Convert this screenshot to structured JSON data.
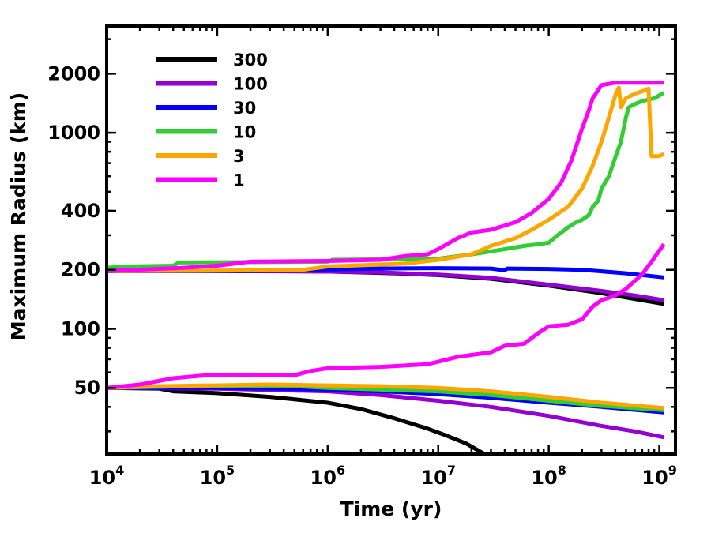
{
  "chart_data": {
    "type": "line",
    "xlabel": "Time (yr)",
    "ylabel": "Maximum Radius (km)",
    "xscale": "log",
    "yscale": "log",
    "xlim": [
      10000,
      1400000000
    ],
    "ylim": [
      23,
      3500
    ],
    "xticks": [
      {
        "value": 10000,
        "base": "10",
        "exp": "4"
      },
      {
        "value": 100000,
        "base": "10",
        "exp": "5"
      },
      {
        "value": 1000000,
        "base": "10",
        "exp": "6"
      },
      {
        "value": 10000000,
        "base": "10",
        "exp": "7"
      },
      {
        "value": 100000000,
        "base": "10",
        "exp": "8"
      },
      {
        "value": 1000000000,
        "base": "10",
        "exp": "9"
      }
    ],
    "yticks": [
      {
        "value": 50,
        "label": "50"
      },
      {
        "value": 100,
        "label": "100"
      },
      {
        "value": 200,
        "label": "200"
      },
      {
        "value": 400,
        "label": "400"
      },
      {
        "value": 1000,
        "label": "1000"
      },
      {
        "value": 2000,
        "label": "2000"
      }
    ],
    "legend_position": "top-left",
    "series": [
      {
        "name": "300",
        "color": "#000000",
        "group": "initial 200 km",
        "points": [
          [
            10000,
            197
          ],
          [
            30000,
            197
          ],
          [
            100000,
            197
          ],
          [
            300000,
            197
          ],
          [
            1000000,
            196
          ],
          [
            2000000,
            194
          ],
          [
            4000000,
            192
          ],
          [
            10000000,
            188
          ],
          [
            30000000,
            180
          ],
          [
            100000000,
            166
          ],
          [
            300000000,
            152
          ],
          [
            600000000,
            142
          ],
          [
            1100000000,
            134
          ]
        ]
      },
      {
        "name": "100",
        "color": "#9400D3",
        "group": "initial 200 km",
        "points": [
          [
            10000,
            197
          ],
          [
            100000,
            197
          ],
          [
            1000000,
            196
          ],
          [
            3000000,
            194
          ],
          [
            10000000,
            189
          ],
          [
            30000000,
            182
          ],
          [
            100000000,
            168
          ],
          [
            300000000,
            156
          ],
          [
            600000000,
            148
          ],
          [
            1100000000,
            140
          ]
        ]
      },
      {
        "name": "30",
        "color": "#0000FF",
        "group": "initial 200 km",
        "points": [
          [
            10000,
            197
          ],
          [
            100000,
            197
          ],
          [
            500000,
            198
          ],
          [
            1000000,
            201
          ],
          [
            3000000,
            203
          ],
          [
            10000000,
            204
          ],
          [
            30000000,
            203
          ],
          [
            40000000,
            199
          ],
          [
            42000000,
            203
          ],
          [
            100000000,
            202
          ],
          [
            200000000,
            200
          ],
          [
            500000000,
            192
          ],
          [
            1100000000,
            183
          ]
        ]
      },
      {
        "name": "10",
        "color": "#32CD32",
        "group": "initial 200 km",
        "points": [
          [
            10000,
            205
          ],
          [
            15000,
            208
          ],
          [
            40000,
            210
          ],
          [
            45000,
            218
          ],
          [
            1000000,
            220
          ],
          [
            1100000,
            225
          ],
          [
            10000000,
            228
          ],
          [
            20000000,
            240
          ],
          [
            40000000,
            255
          ],
          [
            60000000,
            265
          ],
          [
            80000000,
            270
          ],
          [
            100000000,
            275
          ],
          [
            120000000,
            300
          ],
          [
            150000000,
            330
          ],
          [
            170000000,
            345
          ],
          [
            200000000,
            360
          ],
          [
            230000000,
            380
          ],
          [
            250000000,
            420
          ],
          [
            280000000,
            450
          ],
          [
            300000000,
            520
          ],
          [
            350000000,
            600
          ],
          [
            400000000,
            750
          ],
          [
            450000000,
            900
          ],
          [
            500000000,
            1200
          ],
          [
            530000000,
            1350
          ],
          [
            600000000,
            1400
          ],
          [
            700000000,
            1450
          ],
          [
            900000000,
            1500
          ],
          [
            1100000000,
            1600
          ]
        ]
      },
      {
        "name": "3",
        "color": "#FFA500",
        "group": "initial 200 km",
        "points": [
          [
            10000,
            197
          ],
          [
            100000,
            198
          ],
          [
            600000,
            200
          ],
          [
            1000000,
            208
          ],
          [
            5000000,
            215
          ],
          [
            10000000,
            225
          ],
          [
            20000000,
            240
          ],
          [
            30000000,
            265
          ],
          [
            50000000,
            290
          ],
          [
            70000000,
            320
          ],
          [
            100000000,
            360
          ],
          [
            150000000,
            420
          ],
          [
            200000000,
            520
          ],
          [
            250000000,
            680
          ],
          [
            300000000,
            900
          ],
          [
            350000000,
            1200
          ],
          [
            400000000,
            1550
          ],
          [
            430000000,
            1700
          ],
          [
            450000000,
            1350
          ],
          [
            500000000,
            1500
          ],
          [
            600000000,
            1580
          ],
          [
            750000000,
            1650
          ],
          [
            800000000,
            1680
          ],
          [
            850000000,
            760
          ],
          [
            1000000000,
            760
          ],
          [
            1100000000,
            780
          ]
        ]
      },
      {
        "name": "1",
        "color": "#FF00FF",
        "group": "initial 200 km",
        "points": [
          [
            10000,
            197
          ],
          [
            50000,
            205
          ],
          [
            100000,
            210
          ],
          [
            200000,
            220
          ],
          [
            1000000,
            222
          ],
          [
            3000000,
            225
          ],
          [
            5000000,
            235
          ],
          [
            8000000,
            240
          ],
          [
            10000000,
            255
          ],
          [
            15000000,
            290
          ],
          [
            20000000,
            310
          ],
          [
            30000000,
            320
          ],
          [
            50000000,
            350
          ],
          [
            70000000,
            390
          ],
          [
            100000000,
            460
          ],
          [
            130000000,
            560
          ],
          [
            160000000,
            720
          ],
          [
            200000000,
            1050
          ],
          [
            230000000,
            1300
          ],
          [
            250000000,
            1500
          ],
          [
            300000000,
            1750
          ],
          [
            400000000,
            1800
          ],
          [
            1100000000,
            1800
          ]
        ]
      },
      {
        "name": "300",
        "color": "#000000",
        "group": "initial 50 km",
        "points": [
          [
            10000,
            50
          ],
          [
            30000,
            49.5
          ],
          [
            40000,
            48
          ],
          [
            100000,
            47
          ],
          [
            300000,
            45
          ],
          [
            1000000,
            42
          ],
          [
            2000000,
            39
          ],
          [
            4000000,
            35
          ],
          [
            8000000,
            31
          ],
          [
            12000000,
            28.5
          ],
          [
            18000000,
            26
          ],
          [
            23000000,
            24
          ],
          [
            27000000,
            22.8
          ]
        ]
      },
      {
        "name": "100",
        "color": "#9400D3",
        "group": "initial 50 km",
        "points": [
          [
            10000,
            50
          ],
          [
            100000,
            49.5
          ],
          [
            1000000,
            48
          ],
          [
            3000000,
            46
          ],
          [
            10000000,
            43
          ],
          [
            30000000,
            40
          ],
          [
            100000000,
            36
          ],
          [
            300000000,
            32
          ],
          [
            600000000,
            30
          ],
          [
            1100000000,
            28
          ]
        ]
      },
      {
        "name": "30",
        "color": "#0000FF",
        "group": "initial 50 km",
        "points": [
          [
            10000,
            50
          ],
          [
            100000,
            50
          ],
          [
            1000000,
            49
          ],
          [
            3000000,
            48
          ],
          [
            10000000,
            46.5
          ],
          [
            30000000,
            44.5
          ],
          [
            100000000,
            42
          ],
          [
            300000000,
            40
          ],
          [
            1100000000,
            37.5
          ]
        ]
      },
      {
        "name": "10",
        "color": "#32CD32",
        "group": "initial 50 km",
        "points": [
          [
            10000,
            50
          ],
          [
            50000,
            51
          ],
          [
            500000,
            51
          ],
          [
            1000000,
            50
          ],
          [
            3000000,
            49
          ],
          [
            10000000,
            48
          ],
          [
            30000000,
            46
          ],
          [
            100000000,
            43
          ],
          [
            300000000,
            40.5
          ],
          [
            1100000000,
            38.5
          ]
        ]
      },
      {
        "name": "3",
        "color": "#FFA500",
        "group": "initial 50 km",
        "points": [
          [
            10000,
            50
          ],
          [
            30000,
            51
          ],
          [
            300000,
            52
          ],
          [
            3000000,
            51
          ],
          [
            10000000,
            50
          ],
          [
            30000000,
            48
          ],
          [
            100000000,
            45
          ],
          [
            300000000,
            42
          ],
          [
            1100000000,
            39.5
          ]
        ]
      },
      {
        "name": "1",
        "color": "#FF00FF",
        "group": "initial 50 km",
        "points": [
          [
            10000,
            50
          ],
          [
            20000,
            52
          ],
          [
            40000,
            56
          ],
          [
            80000,
            58
          ],
          [
            500000,
            58
          ],
          [
            700000,
            61
          ],
          [
            1000000,
            63
          ],
          [
            3000000,
            64
          ],
          [
            5000000,
            65
          ],
          [
            8000000,
            66
          ],
          [
            10000000,
            68
          ],
          [
            15000000,
            72
          ],
          [
            30000000,
            76
          ],
          [
            40000000,
            82
          ],
          [
            60000000,
            84
          ],
          [
            80000000,
            95
          ],
          [
            100000000,
            103
          ],
          [
            150000000,
            105
          ],
          [
            200000000,
            112
          ],
          [
            250000000,
            130
          ],
          [
            300000000,
            140
          ],
          [
            400000000,
            148
          ],
          [
            500000000,
            160
          ],
          [
            700000000,
            190
          ],
          [
            900000000,
            230
          ],
          [
            1100000000,
            270
          ]
        ]
      }
    ],
    "legend": [
      {
        "label": "300",
        "color": "#000000"
      },
      {
        "label": "100",
        "color": "#9400D3"
      },
      {
        "label": "30",
        "color": "#0000FF"
      },
      {
        "label": "10",
        "color": "#32CD32"
      },
      {
        "label": "3",
        "color": "#FFA500"
      },
      {
        "label": "1",
        "color": "#FF00FF"
      }
    ]
  }
}
